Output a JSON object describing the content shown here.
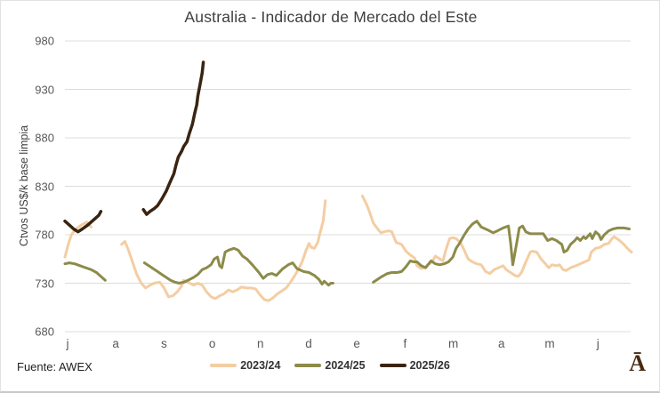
{
  "chart_data": {
    "type": "line",
    "title": "Australia - Indicador de Mercado del Este",
    "ylabel": "Ctvos US$/k base limpia",
    "source_note": "Fuente: AWEX",
    "logo_glyph": "Ā",
    "grid": true,
    "legend_position": "bottom",
    "ylim": [
      680,
      980
    ],
    "y_ticks": [
      980,
      930,
      880,
      830,
      780,
      730,
      680
    ],
    "x_unit": "weeks since start of July (wool selling season)",
    "x_tick_labels": [
      "j",
      "a",
      "s",
      "o",
      "n",
      "d",
      "e",
      "f",
      "m",
      "a",
      "m",
      "j"
    ],
    "grid_color": "#dcdcdc",
    "tick_color": "#595959",
    "series": [
      {
        "name": "2023/24",
        "color": "#f4cda2",
        "stroke_width": 3,
        "segments": [
          [
            [
              0,
              757
            ],
            [
              0.3,
              770
            ],
            [
              0.6,
              780
            ],
            [
              1.0,
              786
            ],
            [
              1.5,
              790
            ],
            [
              2.0,
              793
            ],
            [
              2.4,
              788
            ]
          ],
          [
            [
              5.2,
              770
            ],
            [
              5.5,
              773
            ],
            [
              5.8,
              765
            ],
            [
              6.2,
              752
            ],
            [
              6.6,
              739
            ],
            [
              7.0,
              730
            ],
            [
              7.4,
              725
            ],
            [
              7.8,
              728
            ],
            [
              8.2,
              730
            ],
            [
              8.7,
              731
            ],
            [
              9.1,
              725
            ],
            [
              9.5,
              716
            ],
            [
              9.9,
              717
            ],
            [
              10.3,
              721
            ],
            [
              10.7,
              727
            ],
            [
              10.9,
              733
            ],
            [
              11.3,
              731
            ],
            [
              11.8,
              728
            ],
            [
              12.2,
              730
            ],
            [
              12.6,
              728
            ],
            [
              13.0,
              721
            ],
            [
              13.4,
              716
            ],
            [
              13.8,
              714
            ],
            [
              14.2,
              717
            ],
            [
              14.6,
              719
            ],
            [
              15.0,
              723
            ],
            [
              15.4,
              721
            ],
            [
              15.8,
              723
            ],
            [
              16.2,
              726
            ],
            [
              16.7,
              725
            ],
            [
              17.1,
              725
            ],
            [
              17.5,
              724
            ],
            [
              17.9,
              718
            ],
            [
              18.3,
              713
            ],
            [
              18.7,
              712
            ],
            [
              19.1,
              715
            ],
            [
              19.5,
              719
            ],
            [
              19.9,
              722
            ],
            [
              20.3,
              725
            ],
            [
              20.7,
              731
            ],
            [
              21.1,
              738
            ],
            [
              21.5,
              746
            ],
            [
              21.8,
              753
            ],
            [
              22.1,
              763
            ],
            [
              22.4,
              771
            ],
            [
              22.6,
              767
            ],
            [
              22.9,
              766
            ],
            [
              23.2,
              772
            ],
            [
              23.4,
              781
            ],
            [
              23.7,
              794
            ],
            [
              23.9,
              815
            ]
          ],
          [
            [
              27.3,
              820
            ],
            [
              27.7,
              811
            ],
            [
              28.0,
              802
            ],
            [
              28.3,
              792
            ],
            [
              28.7,
              786
            ],
            [
              29.0,
              782
            ],
            [
              29.3,
              783
            ],
            [
              29.7,
              784
            ],
            [
              30.0,
              783
            ],
            [
              30.4,
              772
            ],
            [
              30.9,
              770
            ],
            [
              31.3,
              763
            ],
            [
              31.7,
              759
            ],
            [
              32.1,
              756
            ],
            [
              32.3,
              748
            ],
            [
              32.7,
              745
            ],
            [
              33.0,
              746
            ],
            [
              33.3,
              749
            ],
            [
              33.7,
              752
            ],
            [
              34.0,
              758
            ],
            [
              34.4,
              755
            ],
            [
              34.7,
              753
            ],
            [
              34.9,
              762
            ],
            [
              35.3,
              776
            ],
            [
              35.6,
              777
            ],
            [
              35.9,
              776
            ],
            [
              36.3,
              772
            ],
            [
              36.6,
              765
            ],
            [
              37.0,
              755
            ],
            [
              37.4,
              752
            ],
            [
              37.8,
              750
            ],
            [
              38.2,
              749
            ],
            [
              38.6,
              742
            ],
            [
              39.0,
              740
            ],
            [
              39.4,
              744
            ],
            [
              39.8,
              746
            ],
            [
              40.2,
              748
            ],
            [
              40.5,
              744
            ],
            [
              40.9,
              741
            ],
            [
              41.3,
              738
            ],
            [
              41.6,
              737
            ],
            [
              41.9,
              741
            ],
            [
              42.3,
              752
            ],
            [
              42.7,
              762
            ],
            [
              42.9,
              763
            ],
            [
              43.3,
              762
            ],
            [
              43.7,
              755
            ],
            [
              44.1,
              750
            ],
            [
              44.4,
              746
            ],
            [
              44.7,
              749
            ],
            [
              45.1,
              748
            ],
            [
              45.4,
              749
            ],
            [
              45.7,
              744
            ],
            [
              46.0,
              743
            ],
            [
              46.4,
              746
            ],
            [
              46.9,
              748
            ],
            [
              47.3,
              750
            ],
            [
              47.7,
              752
            ],
            [
              48.1,
              754
            ],
            [
              48.3,
              762
            ],
            [
              48.7,
              766
            ],
            [
              49.1,
              767
            ],
            [
              49.5,
              770
            ],
            [
              49.9,
              771
            ],
            [
              50.2,
              776
            ],
            [
              50.4,
              778
            ],
            [
              50.9,
              774
            ],
            [
              51.3,
              770
            ],
            [
              51.7,
              765
            ],
            [
              52.0,
              762
            ]
          ]
        ]
      },
      {
        "name": "2024/25",
        "color": "#8c8b4a",
        "stroke_width": 3,
        "segments": [
          [
            [
              0,
              750
            ],
            [
              0.4,
              751
            ],
            [
              0.9,
              750
            ],
            [
              1.4,
              748
            ],
            [
              1.9,
              746
            ],
            [
              2.4,
              744
            ],
            [
              2.9,
              741
            ],
            [
              3.3,
              737
            ],
            [
              3.7,
              733
            ]
          ],
          [
            [
              7.3,
              751
            ],
            [
              7.7,
              748
            ],
            [
              8.1,
              745
            ],
            [
              8.5,
              742
            ],
            [
              8.9,
              739
            ],
            [
              9.3,
              736
            ],
            [
              9.7,
              733
            ],
            [
              10.1,
              731
            ],
            [
              10.5,
              730
            ],
            [
              10.9,
              731
            ],
            [
              11.3,
              733
            ],
            [
              11.8,
              736
            ],
            [
              12.2,
              739
            ],
            [
              12.6,
              744
            ],
            [
              13.0,
              746
            ],
            [
              13.4,
              749
            ],
            [
              13.7,
              755
            ],
            [
              14.0,
              757
            ],
            [
              14.2,
              748
            ],
            [
              14.4,
              746
            ],
            [
              14.7,
              762
            ],
            [
              15.0,
              764
            ],
            [
              15.5,
              766
            ],
            [
              15.9,
              764
            ],
            [
              16.3,
              758
            ],
            [
              16.7,
              755
            ],
            [
              17.2,
              749
            ],
            [
              17.8,
              741
            ],
            [
              18.2,
              735
            ],
            [
              18.6,
              739
            ],
            [
              19.0,
              740
            ],
            [
              19.4,
              738
            ],
            [
              20.0,
              745
            ],
            [
              20.5,
              749
            ],
            [
              20.9,
              751
            ],
            [
              21.3,
              745
            ],
            [
              21.9,
              742
            ],
            [
              22.4,
              741
            ],
            [
              22.9,
              738
            ],
            [
              23.3,
              734
            ],
            [
              23.6,
              729
            ],
            [
              23.8,
              732
            ],
            [
              24.2,
              728
            ],
            [
              24.4,
              730
            ],
            [
              24.6,
              730
            ]
          ],
          [
            [
              28.3,
              731
            ],
            [
              28.7,
              734
            ],
            [
              29.1,
              737
            ],
            [
              29.6,
              740
            ],
            [
              30.0,
              741
            ],
            [
              30.5,
              741
            ],
            [
              30.9,
              742
            ],
            [
              31.3,
              747
            ],
            [
              31.7,
              753
            ],
            [
              32.0,
              752
            ],
            [
              32.3,
              752
            ],
            [
              32.7,
              748
            ],
            [
              33.1,
              746
            ],
            [
              33.6,
              753
            ],
            [
              34.0,
              750
            ],
            [
              34.4,
              749
            ],
            [
              34.8,
              750
            ],
            [
              35.2,
              752
            ],
            [
              35.6,
              757
            ],
            [
              35.9,
              766
            ],
            [
              36.2,
              771
            ],
            [
              36.6,
              779
            ],
            [
              37.0,
              786
            ],
            [
              37.4,
              791
            ],
            [
              37.8,
              794
            ],
            [
              38.2,
              788
            ],
            [
              38.8,
              785
            ],
            [
              39.3,
              782
            ],
            [
              39.7,
              784
            ],
            [
              40.2,
              787
            ],
            [
              40.7,
              789
            ],
            [
              40.9,
              772
            ],
            [
              41.1,
              749
            ],
            [
              41.5,
              774
            ],
            [
              41.7,
              787
            ],
            [
              42.0,
              789
            ],
            [
              42.3,
              783
            ],
            [
              42.7,
              781
            ],
            [
              43.1,
              781
            ],
            [
              43.5,
              781
            ],
            [
              43.9,
              781
            ],
            [
              44.3,
              774
            ],
            [
              44.7,
              776
            ],
            [
              45.1,
              774
            ],
            [
              45.6,
              770
            ],
            [
              45.8,
              762
            ],
            [
              46.1,
              764
            ],
            [
              46.4,
              770
            ],
            [
              46.8,
              774
            ],
            [
              47.0,
              777
            ],
            [
              47.3,
              774
            ],
            [
              47.6,
              778
            ],
            [
              47.8,
              776
            ],
            [
              48.2,
              781
            ],
            [
              48.4,
              776
            ],
            [
              48.7,
              783
            ],
            [
              49.0,
              780
            ],
            [
              49.2,
              775
            ],
            [
              49.5,
              780
            ],
            [
              49.9,
              784
            ],
            [
              50.3,
              786
            ],
            [
              50.7,
              787
            ],
            [
              51.3,
              787
            ],
            [
              51.8,
              786
            ]
          ]
        ]
      },
      {
        "name": "2025/26",
        "color": "#3a2411",
        "stroke_width": 3.5,
        "segments": [
          [
            [
              0,
              794
            ],
            [
              0.4,
              790
            ],
            [
              0.8,
              786
            ],
            [
              1.2,
              783
            ],
            [
              1.6,
              786
            ],
            [
              2.1,
              790
            ],
            [
              2.6,
              795
            ],
            [
              3.1,
              800
            ],
            [
              3.3,
              804
            ]
          ],
          [
            [
              7.2,
              806
            ],
            [
              7.5,
              801
            ],
            [
              7.8,
              804
            ],
            [
              8.2,
              807
            ],
            [
              8.5,
              810
            ],
            [
              8.9,
              817
            ],
            [
              9.3,
              825
            ],
            [
              9.6,
              833
            ],
            [
              10.0,
              843
            ],
            [
              10.2,
              852
            ],
            [
              10.4,
              860
            ],
            [
              10.7,
              866
            ],
            [
              10.9,
              871
            ],
            [
              11.2,
              876
            ],
            [
              11.4,
              884
            ],
            [
              11.7,
              894
            ],
            [
              11.9,
              905
            ],
            [
              12.1,
              914
            ],
            [
              12.2,
              923
            ],
            [
              12.4,
              935
            ],
            [
              12.6,
              947
            ],
            [
              12.7,
              958
            ]
          ]
        ]
      }
    ]
  }
}
